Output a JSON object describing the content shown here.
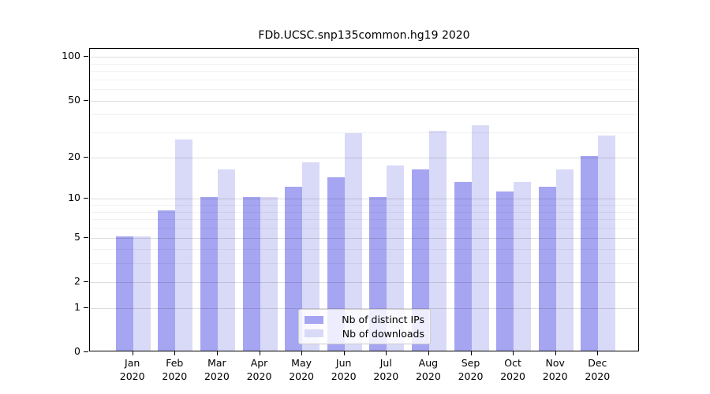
{
  "title": "FDb.UCSC.snp135common.hg19 2020",
  "colors": {
    "ips_bar": "#a5a5f2",
    "downloads_bar": "#d9d9f8",
    "axis": "#000000",
    "grid_major": "rgba(0,0,0,0.13)",
    "grid_minor": "rgba(0,0,0,0.05)",
    "legend_bg": "rgba(255,255,255,0.8)",
    "legend_border": "#cccccc"
  },
  "legend": {
    "items": [
      {
        "label": "Nb of distinct IPs"
      },
      {
        "label": "Nb of downloads"
      }
    ]
  },
  "chart_data": {
    "type": "bar",
    "title": "FDb.UCSC.snp135common.hg19 2020",
    "categories": [
      "Jan",
      "Feb",
      "Mar",
      "Apr",
      "May",
      "Jun",
      "Jul",
      "Aug",
      "Sep",
      "Oct",
      "Nov",
      "Dec"
    ],
    "year": "2020",
    "series": [
      {
        "key": "ips",
        "name": "Nb of distinct IPs",
        "color": "#a5a5f2",
        "values": [
          5,
          8,
          10,
          10,
          12,
          14,
          10,
          16,
          13,
          11,
          12,
          20
        ]
      },
      {
        "key": "downloads",
        "name": "Nb of downloads",
        "color": "#d9d9f8",
        "values": [
          5,
          26,
          16,
          10,
          18,
          29,
          17,
          30,
          33,
          13,
          16,
          28
        ]
      }
    ],
    "y_axis": {
      "scale": "log10(1+value)",
      "tick_values": [
        0,
        1,
        2,
        5,
        10,
        20,
        50,
        100
      ],
      "minor_gridline_values": [
        3,
        4,
        6,
        7,
        8,
        9,
        30,
        40,
        60,
        70,
        80,
        90
      ],
      "range": [
        0,
        113
      ]
    },
    "grid": true,
    "legend_position": "lower-center",
    "bar_grouping": "side-by-side"
  }
}
